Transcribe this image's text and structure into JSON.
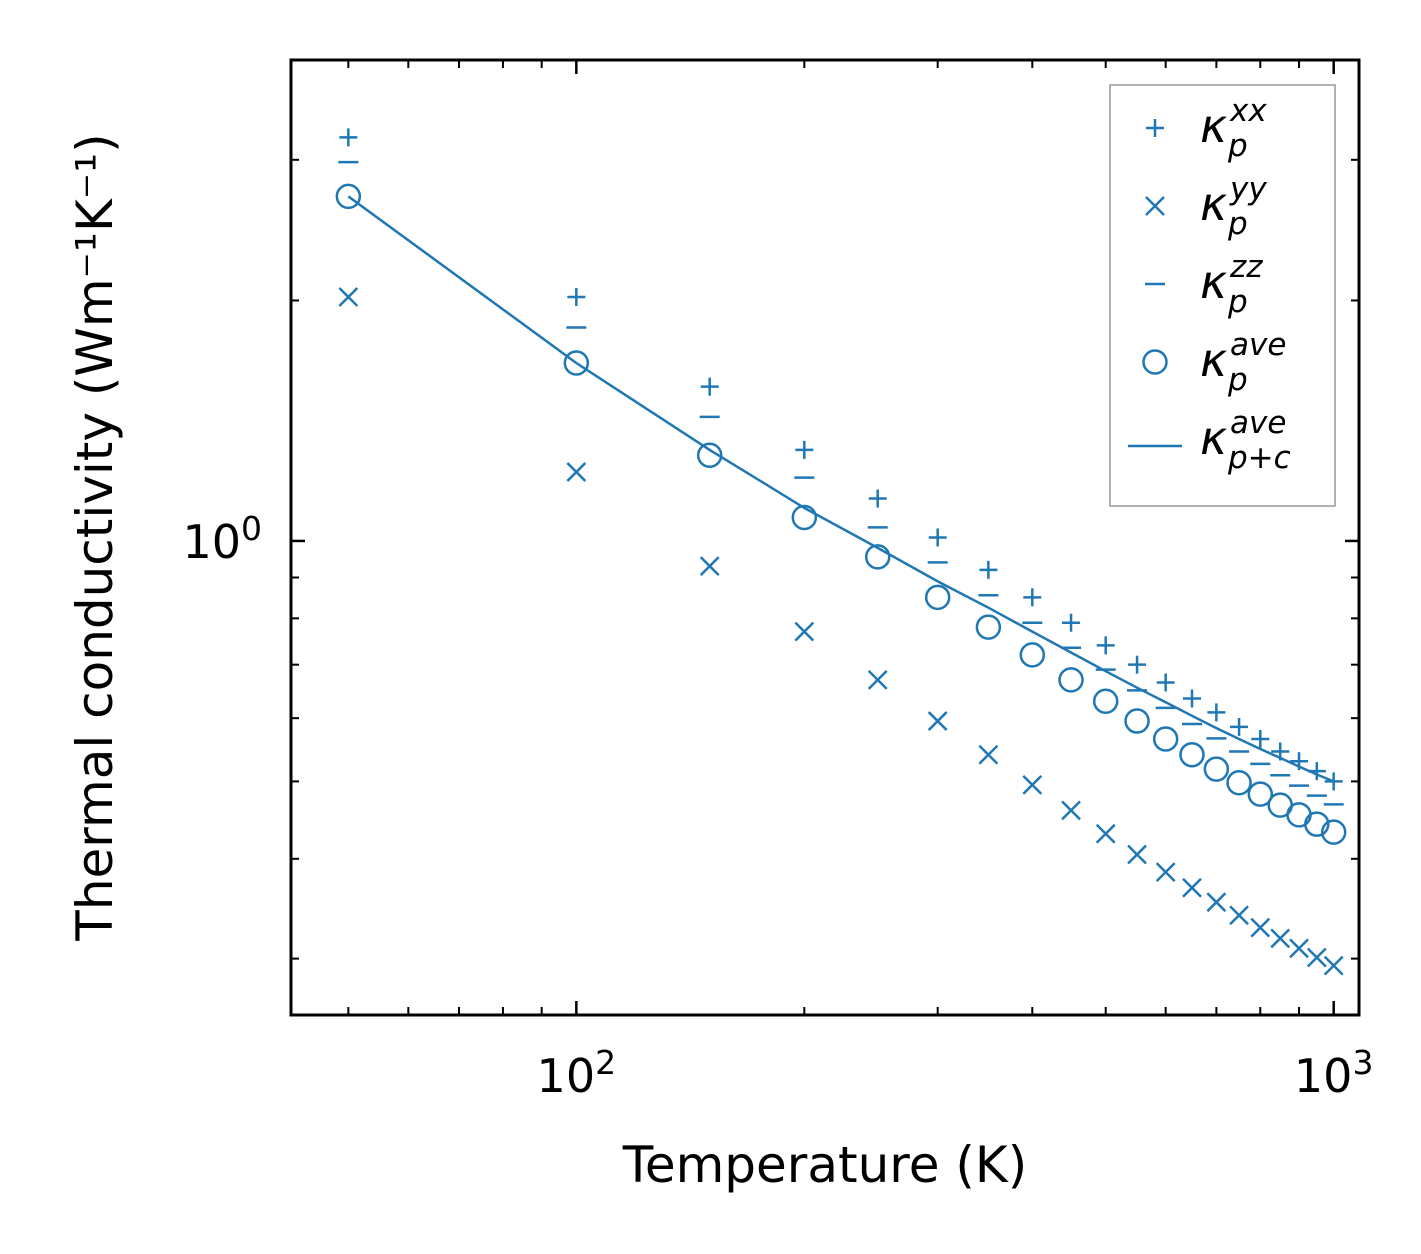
{
  "chart_data": {
    "type": "scatter",
    "title": "",
    "xlabel": "Temperature (K)",
    "ylabel": "Thermal conductivity (Wm⁻¹K⁻¹)",
    "xscale": "log",
    "yscale": "log",
    "xlim": [
      42,
      1080
    ],
    "ylim": [
      0.255,
      4.0
    ],
    "xticks": [
      {
        "base": "10",
        "exp": "2",
        "value": 100
      },
      {
        "base": "10",
        "exp": "3",
        "value": 1000
      }
    ],
    "yticks": [
      {
        "base": "10",
        "exp": "0",
        "value": 1
      }
    ],
    "legend_position": "top-right",
    "color": "#1f77b4",
    "x": [
      50,
      100,
      150,
      200,
      250,
      300,
      350,
      400,
      450,
      500,
      550,
      600,
      650,
      700,
      750,
      800,
      850,
      900,
      950,
      1000
    ],
    "series": [
      {
        "name": "xx",
        "label_base": "κ",
        "label_sub": "p",
        "label_sup": "xx",
        "marker": "plus",
        "values": [
          3.2,
          2.02,
          1.56,
          1.3,
          1.13,
          1.01,
          0.92,
          0.85,
          0.79,
          0.74,
          0.7,
          0.665,
          0.635,
          0.61,
          0.585,
          0.565,
          0.545,
          0.53,
          0.515,
          0.5
        ]
      },
      {
        "name": "yy",
        "label_base": "κ",
        "label_sub": "p",
        "label_sup": "yy",
        "marker": "x",
        "values": [
          2.02,
          1.22,
          0.93,
          0.77,
          0.67,
          0.595,
          0.54,
          0.495,
          0.46,
          0.43,
          0.405,
          0.385,
          0.368,
          0.353,
          0.34,
          0.328,
          0.318,
          0.309,
          0.301,
          0.294
        ]
      },
      {
        "name": "zz",
        "label_base": "κ",
        "label_sub": "p",
        "label_sup": "zz",
        "marker": "hline",
        "values": [
          2.98,
          1.85,
          1.43,
          1.2,
          1.04,
          0.94,
          0.855,
          0.79,
          0.735,
          0.69,
          0.65,
          0.618,
          0.59,
          0.566,
          0.545,
          0.526,
          0.509,
          0.494,
          0.48,
          0.468
        ]
      },
      {
        "name": "ave",
        "label_base": "κ",
        "label_sub": "p",
        "label_sup": "ave",
        "marker": "circle",
        "values": [
          2.7,
          1.67,
          1.28,
          1.07,
          0.955,
          0.85,
          0.78,
          0.72,
          0.67,
          0.63,
          0.595,
          0.565,
          0.54,
          0.518,
          0.498,
          0.482,
          0.467,
          0.454,
          0.442,
          0.432
        ]
      },
      {
        "name": "ave_pc",
        "label_base": "κ",
        "label_sub": "p+c",
        "label_sup": "ave",
        "marker": "line",
        "values": [
          2.7,
          1.67,
          1.3,
          1.1,
          0.98,
          0.89,
          0.825,
          0.77,
          0.725,
          0.687,
          0.655,
          0.628,
          0.604,
          0.583,
          0.565,
          0.549,
          0.535,
          0.522,
          0.51,
          0.5
        ]
      }
    ]
  }
}
